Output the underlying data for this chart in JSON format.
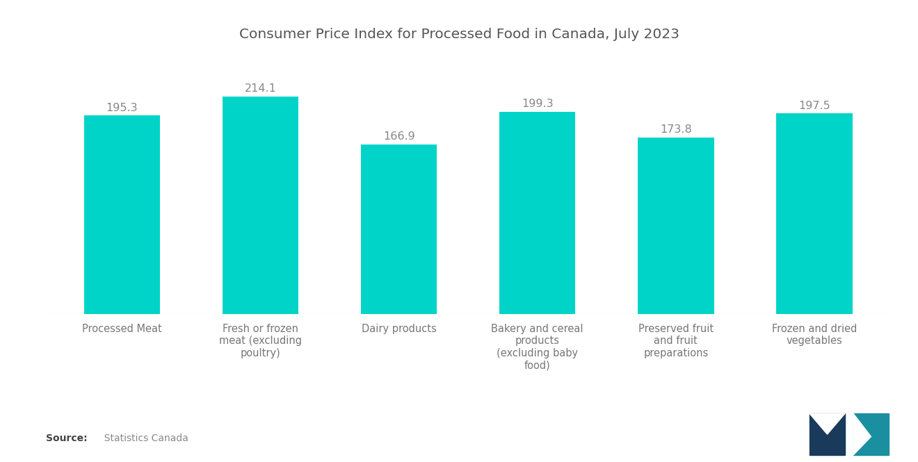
{
  "title": "Consumer Price Index for Processed Food in Canada, July 2023",
  "categories": [
    "Processed Meat",
    "Fresh or frozen\nmeat (excluding\npoultry)",
    "Dairy products",
    "Bakery and cereal\nproducts\n(excluding baby\nfood)",
    "Preserved fruit\nand fruit\npreparations",
    "Frozen and dried\nvegetables"
  ],
  "values": [
    195.3,
    214.1,
    166.9,
    199.3,
    173.8,
    197.5
  ],
  "bar_color": "#00D4C8",
  "value_color": "#888888",
  "title_color": "#555555",
  "label_color": "#777777",
  "background_color": "#ffffff",
  "source_text": "Statistics Canada",
  "source_label": "Source:",
  "ylim": [
    0,
    250
  ],
  "title_fontsize": 14.5,
  "label_fontsize": 10.5,
  "value_fontsize": 11.5
}
